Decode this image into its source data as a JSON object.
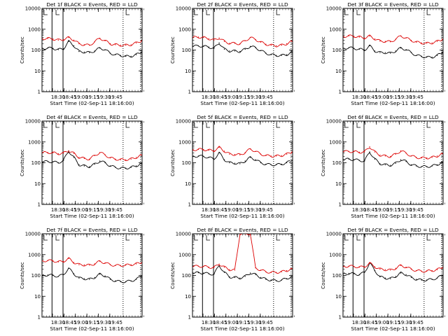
{
  "figure": {
    "xlabel": "Start Time (02-Sep-11 18:16:00)",
    "ylabel": "Counts/sec"
  },
  "colors": {
    "events": "#000000",
    "lld": "#dd0000"
  },
  "chart_data": [
    {
      "type": "line",
      "title": "Det 1f BLACK = Events, RED = LLD",
      "x_ticks": [
        "18:30",
        "18:45",
        "19:00",
        "19:15",
        "19:30",
        "19:45"
      ],
      "y_ticks": [
        "1",
        "10",
        "100",
        "1000",
        "10000"
      ],
      "ylim": [
        1,
        10000
      ],
      "yscale": "log",
      "series": [
        {
          "name": "Events",
          "values": [
            120,
            125,
            120,
            105,
            115,
            260,
            160,
            85,
            80,
            75,
            90,
            125,
            105,
            70,
            60,
            55,
            50,
            50,
            60,
            80
          ]
        },
        {
          "name": "LLD",
          "values": [
            350,
            360,
            340,
            300,
            320,
            400,
            300,
            200,
            180,
            170,
            250,
            370,
            280,
            200,
            180,
            170,
            170,
            180,
            220,
            280
          ]
        }
      ]
    },
    {
      "type": "line",
      "title": "Det 2f BLACK = Events, RED = LLD",
      "x_ticks": [
        "18:30",
        "18:45",
        "19:00",
        "19:15",
        "19:30",
        "19:45"
      ],
      "y_ticks": [
        "1",
        "10",
        "100",
        "1000",
        "10000"
      ],
      "ylim": [
        1,
        10000
      ],
      "yscale": "log",
      "series": [
        {
          "name": "Events",
          "values": [
            150,
            160,
            150,
            140,
            120,
            220,
            110,
            90,
            90,
            85,
            110,
            150,
            130,
            95,
            70,
            60,
            55,
            55,
            60,
            80
          ]
        },
        {
          "name": "LLD",
          "values": [
            400,
            420,
            400,
            350,
            300,
            380,
            260,
            210,
            210,
            200,
            280,
            400,
            320,
            240,
            190,
            170,
            160,
            170,
            200,
            260
          ]
        }
      ]
    },
    {
      "type": "line",
      "title": "Det 3f BLACK = Events, RED = LLD",
      "x_ticks": [
        "18:30",
        "18:45",
        "19:00",
        "19:15",
        "19:30",
        "19:45"
      ],
      "y_ticks": [
        "1",
        "10",
        "100",
        "1000",
        "10000"
      ],
      "ylim": [
        1,
        10000
      ],
      "yscale": "log",
      "series": [
        {
          "name": "Events",
          "values": [
            120,
            130,
            120,
            110,
            100,
            160,
            90,
            75,
            75,
            70,
            90,
            125,
            105,
            75,
            55,
            50,
            45,
            45,
            55,
            75
          ]
        },
        {
          "name": "LLD",
          "values": [
            450,
            480,
            460,
            420,
            380,
            470,
            340,
            270,
            260,
            250,
            330,
            480,
            380,
            290,
            240,
            220,
            210,
            220,
            260,
            330
          ]
        }
      ]
    },
    {
      "type": "line",
      "title": "Det 4f BLACK = Events, RED = LLD",
      "x_ticks": [
        "18:30",
        "18:45",
        "19:00",
        "19:15",
        "19:30",
        "19:45"
      ],
      "y_ticks": [
        "1",
        "10",
        "100",
        "1000",
        "10000"
      ],
      "ylim": [
        1,
        10000
      ],
      "yscale": "log",
      "series": [
        {
          "name": "Events",
          "values": [
            110,
            115,
            110,
            100,
            130,
            360,
            180,
            80,
            70,
            65,
            85,
            120,
            100,
            70,
            60,
            55,
            55,
            60,
            70,
            95
          ]
        },
        {
          "name": "LLD",
          "values": [
            300,
            310,
            300,
            270,
            290,
            380,
            280,
            180,
            160,
            150,
            220,
            310,
            240,
            170,
            150,
            140,
            140,
            150,
            180,
            230
          ]
        }
      ]
    },
    {
      "type": "line",
      "title": "Det 5f BLACK = Events, RED = LLD",
      "x_ticks": [
        "18:30",
        "18:45",
        "19:00",
        "19:15",
        "19:30",
        "19:45"
      ],
      "y_ticks": [
        "1",
        "10",
        "100",
        "1000",
        "10000"
      ],
      "ylim": [
        1,
        10000
      ],
      "yscale": "log",
      "series": [
        {
          "name": "Events",
          "values": [
            200,
            210,
            200,
            180,
            150,
            300,
            140,
            100,
            95,
            90,
            120,
            180,
            140,
            100,
            85,
            80,
            80,
            85,
            100,
            130
          ]
        },
        {
          "name": "LLD",
          "values": [
            420,
            440,
            430,
            400,
            380,
            550,
            360,
            260,
            250,
            240,
            310,
            460,
            350,
            260,
            220,
            210,
            210,
            220,
            260,
            330
          ]
        }
      ]
    },
    {
      "type": "line",
      "title": "Det 6f BLACK = Events, RED = LLD",
      "x_ticks": [
        "18:30",
        "18:45",
        "19:00",
        "19:15",
        "19:30",
        "19:45"
      ],
      "y_ticks": [
        "1",
        "10",
        "100",
        "1000",
        "10000"
      ],
      "ylim": [
        1,
        10000
      ],
      "yscale": "log",
      "series": [
        {
          "name": "Events",
          "values": [
            140,
            150,
            140,
            130,
            120,
            330,
            150,
            90,
            80,
            75,
            95,
            140,
            115,
            80,
            70,
            65,
            65,
            70,
            80,
            110
          ]
        },
        {
          "name": "LLD",
          "values": [
            340,
            350,
            340,
            320,
            330,
            580,
            330,
            230,
            210,
            200,
            260,
            370,
            290,
            210,
            180,
            170,
            170,
            180,
            210,
            270
          ]
        }
      ]
    },
    {
      "type": "line",
      "title": "Det 7f BLACK = Events, RED = LLD",
      "x_ticks": [
        "18:30",
        "18:45",
        "19:00",
        "19:15",
        "19:30",
        "19:45"
      ],
      "y_ticks": [
        "1",
        "10",
        "100",
        "1000",
        "10000"
      ],
      "ylim": [
        1,
        10000
      ],
      "yscale": "log",
      "series": [
        {
          "name": "Events",
          "values": [
            100,
            105,
            100,
            90,
            110,
            220,
            120,
            75,
            70,
            65,
            80,
            115,
            95,
            65,
            55,
            50,
            50,
            55,
            65,
            90
          ]
        },
        {
          "name": "LLD",
          "values": [
            500,
            520,
            500,
            450,
            470,
            650,
            420,
            330,
            320,
            310,
            360,
            480,
            400,
            330,
            300,
            300,
            310,
            330,
            360,
            410
          ]
        }
      ]
    },
    {
      "type": "line",
      "title": "Det 8f BLACK = Events, RED = LLD",
      "x_ticks": [
        "18:30",
        "18:45",
        "19:00",
        "19:15",
        "19:30",
        "19:45"
      ],
      "y_ticks": [
        "1",
        "10",
        "100",
        "1000",
        "10000"
      ],
      "ylim": [
        1,
        10000
      ],
      "yscale": "log",
      "series": [
        {
          "name": "Events",
          "values": [
            130,
            135,
            130,
            120,
            115,
            300,
            140,
            85,
            80,
            75,
            90,
            130,
            110,
            80,
            65,
            60,
            55,
            60,
            70,
            90
          ]
        },
        {
          "name": "LLD",
          "values": [
            270,
            280,
            270,
            250,
            240,
            350,
            250,
            190,
            180,
            12000,
            12000,
            12000,
            230,
            180,
            150,
            140,
            140,
            150,
            170,
            210
          ]
        }
      ]
    },
    {
      "type": "line",
      "title": "Det 9f BLACK = Events, RED = LLD",
      "x_ticks": [
        "18:30",
        "18:45",
        "19:00",
        "19:15",
        "19:30",
        "19:45"
      ],
      "y_ticks": [
        "1",
        "10",
        "100",
        "1000",
        "10000"
      ],
      "ylim": [
        1,
        10000
      ],
      "yscale": "log",
      "series": [
        {
          "name": "Events",
          "values": [
            120,
            125,
            120,
            110,
            140,
            400,
            170,
            85,
            75,
            70,
            90,
            130,
            110,
            80,
            65,
            60,
            60,
            65,
            75,
            100
          ]
        },
        {
          "name": "LLD",
          "values": [
            270,
            280,
            270,
            250,
            260,
            390,
            260,
            200,
            190,
            180,
            220,
            300,
            250,
            200,
            170,
            160,
            160,
            170,
            190,
            240
          ]
        }
      ]
    }
  ]
}
